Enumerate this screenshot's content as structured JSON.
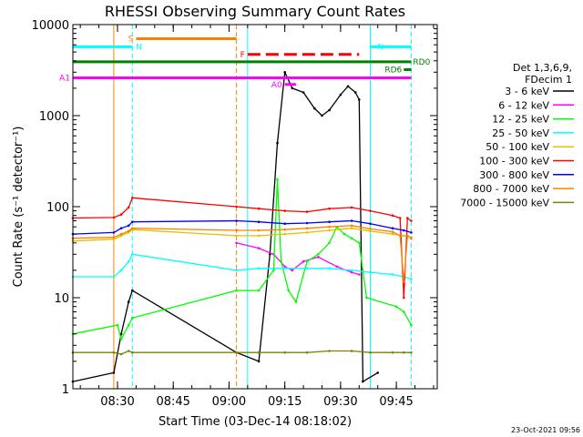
{
  "chart_data": {
    "type": "line",
    "title": "RHESSI Observing Summary Count Rates",
    "xlabel": "Start Time (03-Dec-14 08:18:02)",
    "ylabel": "Count Rate (s⁻¹ detector⁻¹)",
    "y_scale": "log",
    "ylim": [
      1,
      10000
    ],
    "xlim": [
      "08:18",
      "09:56"
    ],
    "x_ticks": [
      "08:30",
      "08:45",
      "09:00",
      "09:15",
      "09:30",
      "09:45"
    ],
    "y_ticks": [
      "1",
      "10",
      "100",
      "1000",
      "10000"
    ],
    "legend_header": [
      "Det 1,3,6,9,",
      "FDecim 1"
    ],
    "legend_position": "right",
    "footer_date": "23-Oct-2021 09:56",
    "series": [
      {
        "name": "3 - 6 keV",
        "color": "#000000",
        "points": [
          [
            "08:18",
            1.2
          ],
          [
            "08:29",
            1.5
          ],
          [
            "08:31",
            4
          ],
          [
            "08:33",
            9
          ],
          [
            "08:34",
            12
          ],
          [
            "09:02",
            2.5
          ],
          [
            "09:08",
            2
          ],
          [
            "09:11",
            30
          ],
          [
            "09:13",
            500
          ],
          [
            "09:15",
            3000
          ],
          [
            "09:17",
            2000
          ],
          [
            "09:20",
            1800
          ],
          [
            "09:23",
            1200
          ],
          [
            "09:25",
            1000
          ],
          [
            "09:27",
            1150
          ],
          [
            "09:30",
            1700
          ],
          [
            "09:32",
            2100
          ],
          [
            "09:34",
            1800
          ],
          [
            "09:35",
            1500
          ],
          [
            "09:36",
            1.2
          ],
          [
            "09:40",
            1.5
          ]
        ]
      },
      {
        "name": "6 - 12 keV",
        "color": "#ff00ff",
        "points": [
          [
            "09:02",
            40
          ],
          [
            "09:08",
            35
          ],
          [
            "09:12",
            30
          ],
          [
            "09:15",
            22
          ],
          [
            "09:17",
            20
          ],
          [
            "09:20",
            25
          ],
          [
            "09:24",
            28
          ],
          [
            "09:29",
            22
          ],
          [
            "09:33",
            19
          ],
          [
            "09:35",
            18
          ]
        ]
      },
      {
        "name": "12 - 25 keV",
        "color": "#00ff00",
        "points": [
          [
            "08:18",
            4
          ],
          [
            "08:30",
            5
          ],
          [
            "08:31",
            3.5
          ],
          [
            "08:33",
            5
          ],
          [
            "08:34",
            6
          ],
          [
            "09:02",
            12
          ],
          [
            "09:08",
            12
          ],
          [
            "09:12",
            20
          ],
          [
            "09:13",
            200
          ],
          [
            "09:14",
            25
          ],
          [
            "09:16",
            12
          ],
          [
            "09:18",
            9
          ],
          [
            "09:21",
            25
          ],
          [
            "09:24",
            30
          ],
          [
            "09:27",
            40
          ],
          [
            "09:29",
            60
          ],
          [
            "09:31",
            50
          ],
          [
            "09:33",
            45
          ],
          [
            "09:35",
            40
          ],
          [
            "09:37",
            10
          ],
          [
            "09:45",
            8
          ],
          [
            "09:47",
            7
          ],
          [
            "09:49",
            5
          ]
        ]
      },
      {
        "name": "25 - 50 keV",
        "color": "#00ffff",
        "points": [
          [
            "08:18",
            17
          ],
          [
            "08:29",
            17
          ],
          [
            "08:31",
            20
          ],
          [
            "08:33",
            25
          ],
          [
            "08:34",
            30
          ],
          [
            "09:02",
            20
          ],
          [
            "09:08",
            21
          ],
          [
            "09:15",
            21
          ],
          [
            "09:21",
            21
          ],
          [
            "09:27",
            21
          ],
          [
            "09:33",
            20
          ],
          [
            "09:38",
            19
          ],
          [
            "09:44",
            18
          ],
          [
            "09:47",
            17
          ],
          [
            "09:49",
            16
          ]
        ]
      },
      {
        "name": "50 - 100 keV",
        "color": "#e0c000",
        "points": [
          [
            "08:18",
            42
          ],
          [
            "08:29",
            44
          ],
          [
            "08:31",
            48
          ],
          [
            "08:33",
            52
          ],
          [
            "08:34",
            56
          ],
          [
            "09:02",
            48
          ],
          [
            "09:08",
            48
          ],
          [
            "09:15",
            50
          ],
          [
            "09:21",
            52
          ],
          [
            "09:27",
            55
          ],
          [
            "09:33",
            58
          ],
          [
            "09:38",
            54
          ],
          [
            "09:44",
            50
          ],
          [
            "09:47",
            48
          ],
          [
            "09:49",
            46
          ]
        ]
      },
      {
        "name": "100 - 300 keV",
        "color": "#ff0000",
        "points": [
          [
            "08:18",
            75
          ],
          [
            "08:29",
            76
          ],
          [
            "08:31",
            82
          ],
          [
            "08:33",
            98
          ],
          [
            "08:34",
            125
          ],
          [
            "09:02",
            100
          ],
          [
            "09:08",
            95
          ],
          [
            "09:15",
            90
          ],
          [
            "09:21",
            88
          ],
          [
            "09:27",
            95
          ],
          [
            "09:33",
            98
          ],
          [
            "09:38",
            90
          ],
          [
            "09:44",
            80
          ],
          [
            "09:46",
            75
          ],
          [
            "09:47",
            10
          ],
          [
            "09:48",
            75
          ],
          [
            "09:49",
            70
          ]
        ]
      },
      {
        "name": "300 - 800 keV",
        "color": "#0000ff",
        "points": [
          [
            "08:18",
            50
          ],
          [
            "08:29",
            52
          ],
          [
            "08:31",
            58
          ],
          [
            "08:33",
            62
          ],
          [
            "08:34",
            68
          ],
          [
            "09:02",
            70
          ],
          [
            "09:08",
            68
          ],
          [
            "09:15",
            65
          ],
          [
            "09:21",
            66
          ],
          [
            "09:27",
            68
          ],
          [
            "09:33",
            70
          ],
          [
            "09:38",
            65
          ],
          [
            "09:44",
            58
          ],
          [
            "09:47",
            55
          ],
          [
            "09:49",
            52
          ]
        ]
      },
      {
        "name": "800 - 7000 keV",
        "color": "#ff8000",
        "points": [
          [
            "08:18",
            45
          ],
          [
            "08:29",
            46
          ],
          [
            "08:31",
            50
          ],
          [
            "08:33",
            54
          ],
          [
            "08:34",
            58
          ],
          [
            "09:02",
            55
          ],
          [
            "09:08",
            55
          ],
          [
            "09:15",
            56
          ],
          [
            "09:21",
            58
          ],
          [
            "09:27",
            60
          ],
          [
            "09:33",
            62
          ],
          [
            "09:38",
            57
          ],
          [
            "09:44",
            53
          ],
          [
            "09:46",
            48
          ],
          [
            "09:47",
            15
          ],
          [
            "09:48",
            48
          ],
          [
            "09:49",
            45
          ]
        ]
      },
      {
        "name": "7000 - 15000 keV",
        "color": "#808000",
        "points": [
          [
            "08:18",
            2.5
          ],
          [
            "08:29",
            2.5
          ],
          [
            "08:31",
            2.4
          ],
          [
            "08:33",
            2.6
          ],
          [
            "08:34",
            2.5
          ],
          [
            "09:02",
            2.5
          ],
          [
            "09:08",
            2.5
          ],
          [
            "09:15",
            2.5
          ],
          [
            "09:21",
            2.5
          ],
          [
            "09:27",
            2.6
          ],
          [
            "09:33",
            2.6
          ],
          [
            "09:38",
            2.5
          ],
          [
            "09:44",
            2.5
          ],
          [
            "09:47",
            2.5
          ],
          [
            "09:49",
            2.5
          ]
        ]
      }
    ],
    "flag_bars": [
      {
        "label": "S",
        "color": "#ff8000",
        "start": "08:35",
        "end": "09:02",
        "level": 7000
      },
      {
        "label": "N",
        "color": "#00ffff",
        "start": "08:18",
        "end": "08:34",
        "level": 5700
      },
      {
        "label": "N",
        "color": "#00ffff",
        "start": "09:38",
        "end": "09:49",
        "level": 5700
      },
      {
        "label": "F",
        "color": "#ff0000",
        "start": "09:05",
        "end": "09:35",
        "level": 4700
      },
      {
        "label": "RD0",
        "color": "#008000",
        "start": "08:18",
        "end": "09:49",
        "level": 3900
      },
      {
        "label": "RD6",
        "color": "#008000",
        "start": "09:47",
        "end": "09:49",
        "level": 3200
      },
      {
        "label": "A1",
        "color": "#ff00ff",
        "start": "08:18",
        "end": "09:49",
        "level": 2600
      },
      {
        "label": "A0",
        "color": "#ff00ff",
        "start": "09:15",
        "end": "09:18",
        "level": 2200
      }
    ],
    "vertical_markers": [
      {
        "time": "08:29",
        "color": "#ff8000",
        "style": "solid"
      },
      {
        "time": "08:34",
        "color": "#00ffff",
        "style": "dashed"
      },
      {
        "time": "09:02",
        "color": "#ff8000",
        "style": "dashed"
      },
      {
        "time": "09:05",
        "color": "#00ffff",
        "style": "solid"
      },
      {
        "time": "09:38",
        "color": "#00ffff",
        "style": "solid"
      },
      {
        "time": "09:49",
        "color": "#00ffff",
        "style": "dashed"
      }
    ]
  }
}
